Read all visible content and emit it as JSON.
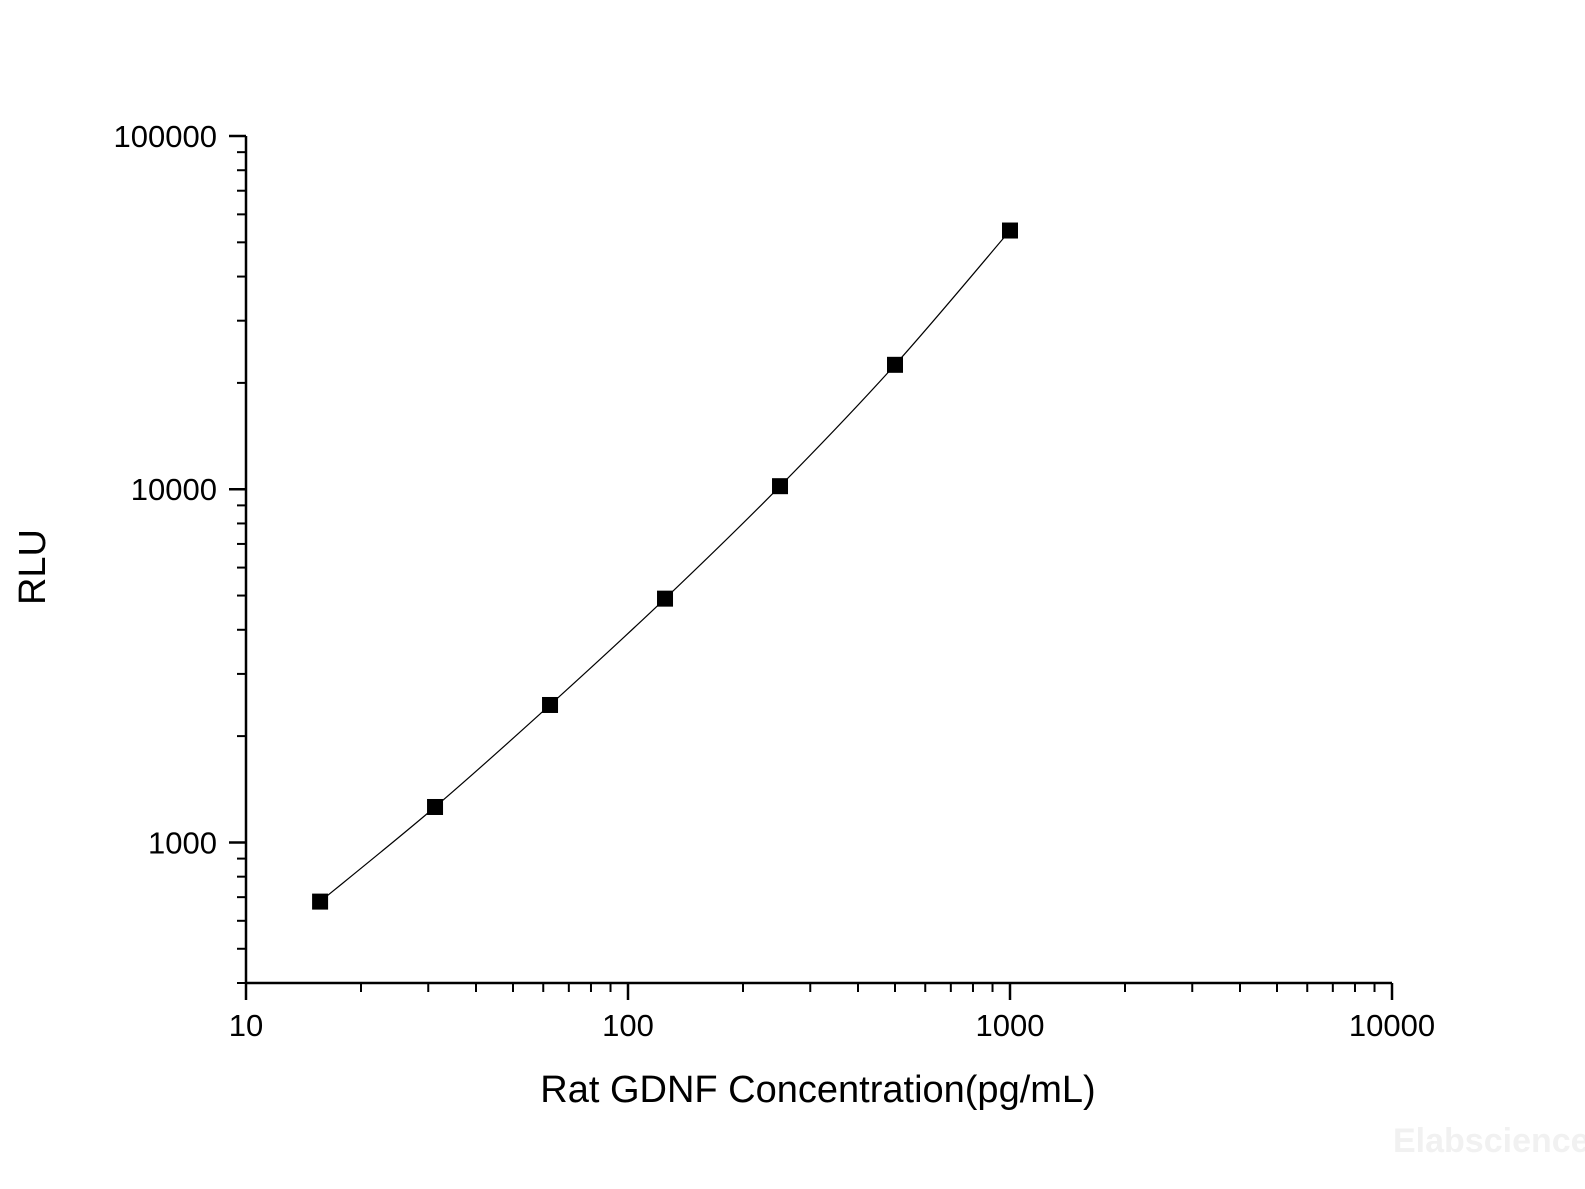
{
  "chart_data": {
    "type": "scatter",
    "xlabel": "Rat GDNF Concentration(pg/mL)",
    "ylabel": "RLU",
    "xscale": "log",
    "yscale": "log",
    "xlim": [
      10,
      10000
    ],
    "ylim": [
      400,
      100000
    ],
    "x_ticks": [
      10,
      100,
      1000,
      10000
    ],
    "x_tick_labels": [
      "10",
      "100",
      "1000",
      "10000"
    ],
    "y_ticks": [
      1000,
      10000,
      100000
    ],
    "y_tick_labels": [
      "1000",
      "10000",
      "100000"
    ],
    "grid": false,
    "series": [
      {
        "marker": "square",
        "line": "fitted-curve",
        "x": [
          15.63,
          31.25,
          62.5,
          125,
          250,
          500,
          1000
        ],
        "y": [
          680,
          1260,
          2450,
          4900,
          10200,
          22500,
          54000
        ]
      }
    ],
    "colors": {
      "marker": "#000000",
      "line": "#000000",
      "axis": "#000000"
    }
  },
  "watermark": "Elabscience"
}
